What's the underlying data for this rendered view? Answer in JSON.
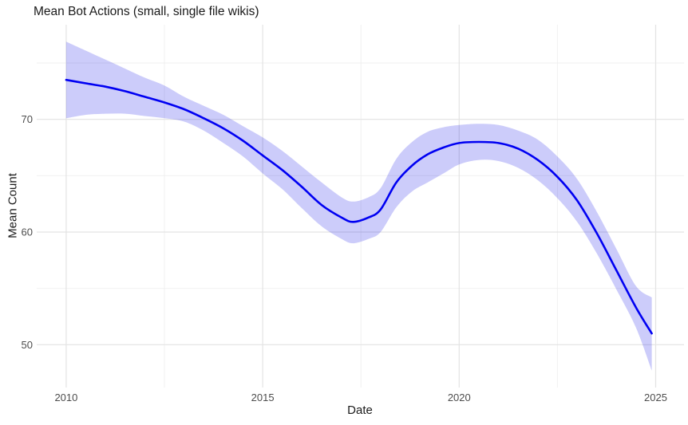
{
  "chart": {
    "title": "Mean Bot Actions (small, single file wikis)",
    "xlabel": "Date",
    "ylabel": "Mean Count"
  },
  "chart_data": {
    "type": "line",
    "title": "Mean Bot Actions (small, single file wikis)",
    "xlabel": "Date",
    "ylabel": "Mean Count",
    "description": "Smoothed trend line with confidence ribbon",
    "xlim": [
      2009.25,
      2025.72
    ],
    "ylim": [
      46.2,
      78.4
    ],
    "grid": "on",
    "legend": "none",
    "x": [
      2010,
      2010.5,
      2011,
      2011.5,
      2012,
      2012.5,
      2013,
      2013.5,
      2014,
      2014.5,
      2015,
      2015.5,
      2016,
      2016.5,
      2017,
      2017.3,
      2017.7,
      2018,
      2018.4,
      2018.8,
      2019.2,
      2019.6,
      2020,
      2020.5,
      2021,
      2021.5,
      2022,
      2022.5,
      2023,
      2023.5,
      2024,
      2024.5,
      2024.9
    ],
    "series": [
      {
        "name": "mean_count",
        "values": [
          73.5,
          73.2,
          72.9,
          72.5,
          72.0,
          71.5,
          70.9,
          70.1,
          69.2,
          68.1,
          66.8,
          65.5,
          64.0,
          62.4,
          61.3,
          60.9,
          61.3,
          62.0,
          64.4,
          65.9,
          66.9,
          67.5,
          67.9,
          68.0,
          67.9,
          67.4,
          66.4,
          64.9,
          62.8,
          59.9,
          56.6,
          53.3,
          51.0
        ]
      },
      {
        "name": "ci_lower",
        "values": [
          70.1,
          70.4,
          70.5,
          70.5,
          70.3,
          70.1,
          69.8,
          69.0,
          67.9,
          66.7,
          65.2,
          63.8,
          62.1,
          60.5,
          59.4,
          59.0,
          59.4,
          60.0,
          62.2,
          63.6,
          64.4,
          65.2,
          66.0,
          66.4,
          66.3,
          65.7,
          64.6,
          63.0,
          60.9,
          58.1,
          54.9,
          51.5,
          47.7
        ]
      },
      {
        "name": "ci_upper",
        "values": [
          76.9,
          76.1,
          75.3,
          74.5,
          73.7,
          73.0,
          72.0,
          71.2,
          70.4,
          69.4,
          68.4,
          67.2,
          65.8,
          64.4,
          63.1,
          62.7,
          63.1,
          63.9,
          66.5,
          68.0,
          68.9,
          69.3,
          69.5,
          69.6,
          69.5,
          69.0,
          68.2,
          66.7,
          64.7,
          61.8,
          58.5,
          55.2,
          54.2
        ]
      }
    ],
    "x_axis": {
      "major": [
        2010,
        2015,
        2020,
        2025
      ],
      "major_labels": [
        "2010",
        "2015",
        "2020",
        "2025"
      ],
      "minor": [
        2012.5,
        2017.5,
        2022.5
      ]
    },
    "y_axis": {
      "major": [
        50,
        60,
        70
      ],
      "major_labels": [
        "50",
        "60",
        "70"
      ],
      "minor": [
        55,
        65,
        75
      ]
    },
    "colors": {
      "line": "#0000f2",
      "band": "#0000e8",
      "band_opacity": 0.2,
      "grid_major": "#e3e3e3",
      "grid_minor": "#efefef",
      "background": "#ffffff",
      "tick_text": "#4d4d4d",
      "title_text": "#191919"
    }
  }
}
